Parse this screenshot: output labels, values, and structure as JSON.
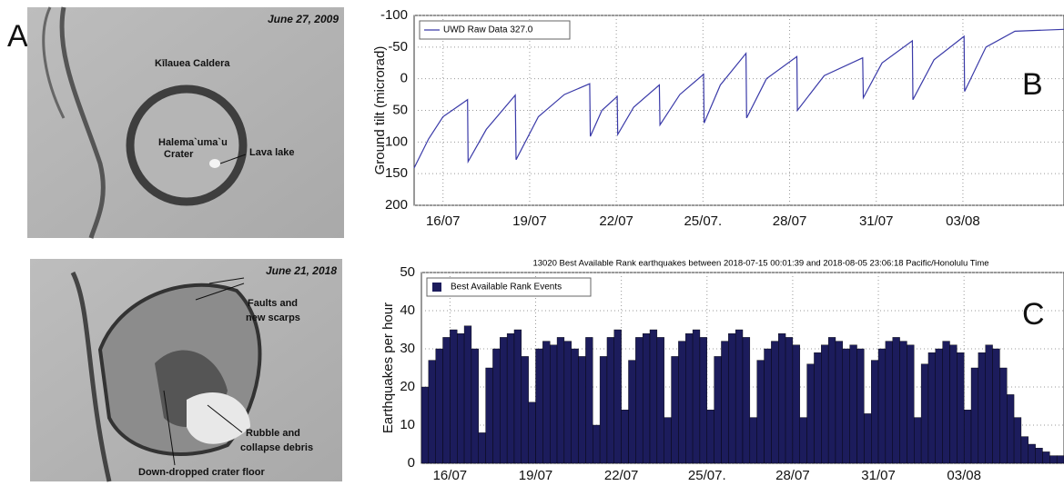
{
  "panel_a": {
    "label": "A",
    "top": {
      "date": "June 27, 2009",
      "caldera": "Kīlauea Caldera",
      "crater": [
        "Halema`uma`u",
        "Crater"
      ],
      "lake": "Lava lake"
    },
    "bottom": {
      "date": "June 21, 2018",
      "faults": [
        "Faults and",
        "new scarps"
      ],
      "rubble": [
        "Rubble and",
        "collapse debris"
      ],
      "floor": "Down-dropped crater floor"
    }
  },
  "chart_data": [
    {
      "type": "line",
      "panel_label": "B",
      "ylabel": "Ground tilt (microrad)",
      "xlim": [
        15,
        37.5
      ],
      "ylim": [
        200,
        -100
      ],
      "yticks": [
        -100,
        -50,
        0,
        50,
        100,
        150,
        200
      ],
      "xticks": [
        {
          "value": 16,
          "label": "16/07"
        },
        {
          "value": 19,
          "label": "19/07"
        },
        {
          "value": 22,
          "label": "22/07"
        },
        {
          "value": 25,
          "label": "25/07."
        },
        {
          "value": 28,
          "label": "28/07"
        },
        {
          "value": 31,
          "label": "31/07"
        },
        {
          "value": 34,
          "label": "03/08"
        }
      ],
      "grid": true,
      "legend": "upper left",
      "series": [
        {
          "name": "UWD Raw Data 327.0",
          "color": "#3a3aa8",
          "x": [
            15.0,
            15.5,
            16.0,
            16.85,
            16.87,
            17.5,
            18.5,
            18.53,
            19.3,
            20.2,
            21.08,
            21.1,
            21.5,
            22.03,
            22.05,
            22.6,
            23.49,
            23.51,
            24.2,
            25.02,
            25.04,
            25.6,
            26.49,
            26.51,
            27.2,
            28.25,
            28.27,
            29.2,
            30.53,
            30.55,
            31.2,
            32.25,
            32.27,
            33.0,
            34.04,
            34.06,
            34.8,
            35.8,
            37.5
          ],
          "values": [
            141,
            95,
            60,
            33,
            131,
            80,
            26,
            128,
            60,
            25,
            8,
            91,
            50,
            28,
            88,
            45,
            10,
            73,
            25,
            -7,
            70,
            10,
            -40,
            62,
            0,
            -35,
            50,
            -5,
            -33,
            30,
            -25,
            -60,
            33,
            -30,
            -67,
            20,
            -50,
            -75,
            -78
          ]
        }
      ]
    },
    {
      "type": "histogram",
      "panel_label": "C",
      "title": "13020 Best Available Rank earthquakes between 2018-07-15 00:01:39 and 2018-08-05 23:06:18 Pacific/Honolulu Time",
      "ylabel": "Earthquakes per hour",
      "xlim": [
        15,
        37.5
      ],
      "ylim": [
        0,
        50
      ],
      "yticks": [
        0,
        10,
        20,
        30,
        40,
        50
      ],
      "xticks": [
        {
          "value": 16,
          "label": "16/07"
        },
        {
          "value": 19,
          "label": "19/07"
        },
        {
          "value": 22,
          "label": "22/07"
        },
        {
          "value": 25,
          "label": "25/07."
        },
        {
          "value": 28,
          "label": "28/07"
        },
        {
          "value": 31,
          "label": "31/07"
        },
        {
          "value": 34,
          "label": "03/08"
        }
      ],
      "grid": true,
      "legend": "upper left",
      "bins": [
        15,
        15.25,
        15.5,
        15.75,
        16,
        16.25,
        16.5,
        16.75,
        17,
        17.25,
        17.5,
        17.75,
        18,
        18.25,
        18.5,
        18.75,
        19,
        19.25,
        19.5,
        19.75,
        20,
        20.25,
        20.5,
        20.75,
        21,
        21.25,
        21.5,
        21.75,
        22,
        22.25,
        22.5,
        22.75,
        23,
        23.25,
        23.5,
        23.75,
        24,
        24.25,
        24.5,
        24.75,
        25,
        25.25,
        25.5,
        25.75,
        26,
        26.25,
        26.5,
        26.75,
        27,
        27.25,
        27.5,
        27.75,
        28,
        28.25,
        28.5,
        28.75,
        29,
        29.25,
        29.5,
        29.75,
        30,
        30.25,
        30.5,
        30.75,
        31,
        31.25,
        31.5,
        31.75,
        32,
        32.25,
        32.5,
        32.75,
        33,
        33.25,
        33.5,
        33.75,
        34,
        34.25,
        34.5,
        34.75,
        35,
        35.25,
        35.5,
        35.75,
        36,
        36.25,
        36.5,
        36.75,
        37,
        37.25,
        37.5
      ],
      "series": [
        {
          "name": "Best Available Rank Events",
          "color": "#1c1c5c",
          "values": [
            20,
            27,
            30,
            33,
            35,
            34,
            36,
            30,
            8,
            25,
            30,
            33,
            34,
            35,
            28,
            16,
            30,
            32,
            31,
            33,
            32,
            30,
            28,
            33,
            10,
            28,
            33,
            35,
            14,
            27,
            33,
            34,
            35,
            33,
            12,
            28,
            32,
            34,
            35,
            33,
            14,
            28,
            32,
            34,
            35,
            33,
            12,
            27,
            30,
            32,
            34,
            33,
            31,
            12,
            26,
            29,
            31,
            33,
            32,
            30,
            31,
            30,
            13,
            27,
            30,
            32,
            33,
            32,
            31,
            12,
            26,
            29,
            30,
            32,
            31,
            29,
            14,
            25,
            29,
            31,
            30,
            25,
            18,
            12,
            7,
            5,
            4,
            3,
            2,
            2
          ]
        }
      ]
    }
  ]
}
